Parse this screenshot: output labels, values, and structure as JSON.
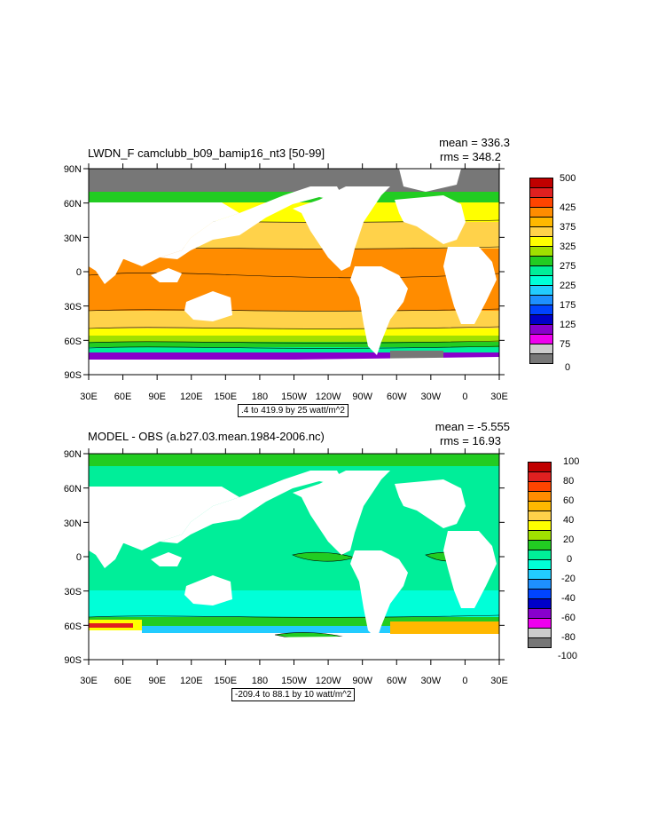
{
  "panels": [
    {
      "title": "LWDN_F camclubb_b09_bamip16_nt3 [50-99]",
      "mean_text": "mean = 336.3",
      "rms_text": "rms = 348.2",
      "range_text": ".4 to 419.9 by 25 watt/m^2",
      "lat_labels": [
        "90N",
        "60N",
        "30N",
        "0",
        "30S",
        "60S",
        "90S"
      ],
      "lon_labels": [
        "30E",
        "60E",
        "90E",
        "120E",
        "150E",
        "180",
        "150W",
        "120W",
        "90W",
        "60W",
        "30W",
        "0",
        "30E"
      ],
      "colorbar_labels": [
        "500",
        "425",
        "375",
        "325",
        "275",
        "225",
        "175",
        "125",
        "75",
        "0"
      ],
      "colorbar_colors": [
        "#c00000",
        "#e02020",
        "#ff4400",
        "#ff8c00",
        "#ffb800",
        "#ffd24a",
        "#ffff00",
        "#a0e000",
        "#22cc22",
        "#00ee99",
        "#00ffd8",
        "#22ccff",
        "#1e90ff",
        "#0044ff",
        "#0000c8",
        "#8800cc",
        "#ee00ee",
        "#cccccc",
        "#777777"
      ]
    },
    {
      "title": "MODEL - OBS (a.b27.03.mean.1984-2006.nc)",
      "mean_text": "mean = -5.555",
      "rms_text": "rms = 16.93",
      "range_text": "-209.4 to 88.1 by 10 watt/m^2",
      "lat_labels": [
        "90N",
        "60N",
        "30N",
        "0",
        "30S",
        "60S",
        "90S"
      ],
      "lon_labels": [
        "30E",
        "60E",
        "90E",
        "120E",
        "150E",
        "180",
        "150W",
        "120W",
        "90W",
        "60W",
        "30W",
        "0",
        "30E"
      ],
      "colorbar_labels": [
        "100",
        "80",
        "60",
        "40",
        "20",
        "0",
        "-20",
        "-40",
        "-60",
        "-80",
        "-100"
      ],
      "colorbar_colors": [
        "#c00000",
        "#e02020",
        "#ff4400",
        "#ff8c00",
        "#ffb800",
        "#ffd24a",
        "#ffff00",
        "#a0e000",
        "#22cc22",
        "#00ee99",
        "#00ffd8",
        "#22ccff",
        "#1e90ff",
        "#0044ff",
        "#0000c8",
        "#8800cc",
        "#ee00ee",
        "#cccccc",
        "#777777"
      ]
    }
  ]
}
